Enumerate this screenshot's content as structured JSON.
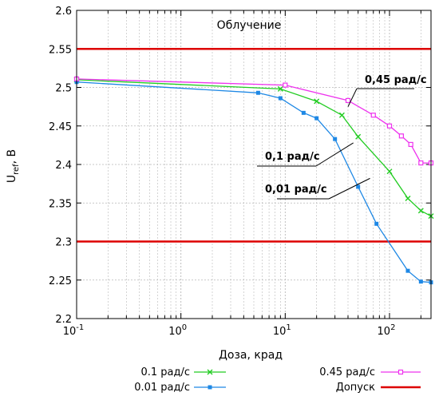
{
  "chart_data": {
    "type": "line",
    "title": "Облучение",
    "xlabel": "Доза, крад",
    "ylabel_main": "U",
    "ylabel_sub": "ref",
    "ylabel_unit": ", В",
    "xscale": "log",
    "xlim": [
      0.1,
      250
    ],
    "ylim": [
      2.2,
      2.6
    ],
    "grid": true,
    "x_ticks": [
      {
        "value": 0.1,
        "base": "10",
        "exp": "-1"
      },
      {
        "value": 1,
        "base": "10",
        "exp": "0"
      },
      {
        "value": 10,
        "base": "10",
        "exp": "1"
      },
      {
        "value": 100,
        "base": "10",
        "exp": "2"
      }
    ],
    "y_ticks": [
      {
        "value": 2.2,
        "label": "2.2"
      },
      {
        "value": 2.25,
        "label": "2.25"
      },
      {
        "value": 2.3,
        "label": "2.3"
      },
      {
        "value": 2.35,
        "label": "2.35"
      },
      {
        "value": 2.4,
        "label": "2.4"
      },
      {
        "value": 2.45,
        "label": "2.45"
      },
      {
        "value": 2.5,
        "label": "2.5"
      },
      {
        "value": 2.55,
        "label": "2.55"
      },
      {
        "value": 2.6,
        "label": "2.6"
      }
    ],
    "series": [
      {
        "name": "0.1 рад/с",
        "color": "#22cc22",
        "marker": "x",
        "x": [
          0.1,
          9,
          20,
          35,
          50,
          100,
          150,
          200,
          250
        ],
        "y": [
          2.51,
          2.498,
          2.482,
          2.464,
          2.436,
          2.391,
          2.356,
          2.34,
          2.333
        ]
      },
      {
        "name": "0.01 рад/с",
        "color": "#1e88e5",
        "marker": "square",
        "x": [
          0.1,
          5.5,
          9,
          15,
          20,
          30,
          50,
          75,
          150,
          200,
          250
        ],
        "y": [
          2.507,
          2.493,
          2.486,
          2.467,
          2.46,
          2.433,
          2.371,
          2.323,
          2.262,
          2.248,
          2.247
        ]
      },
      {
        "name": "0.45 рад/с",
        "color": "#ee33ee",
        "marker": "square-open",
        "x": [
          0.1,
          10,
          40,
          70,
          100,
          130,
          160,
          200,
          250
        ],
        "y": [
          2.511,
          2.503,
          2.483,
          2.464,
          2.45,
          2.437,
          2.426,
          2.402,
          2.402
        ]
      },
      {
        "name": "Допуск",
        "color": "#dd0000",
        "marker": "none",
        "x": [
          0.1,
          250
        ],
        "y": [
          2.55,
          2.55
        ],
        "y2": [
          2.3,
          2.3
        ]
      }
    ],
    "annotations": [
      {
        "text": "0,45 рад/с",
        "x": 40,
        "y": 2.475
      },
      {
        "text": "0,1 рад/с",
        "x": 40,
        "y": 2.41
      },
      {
        "text": "0,01 рад/с",
        "x": 40,
        "y": 2.36
      }
    ]
  }
}
